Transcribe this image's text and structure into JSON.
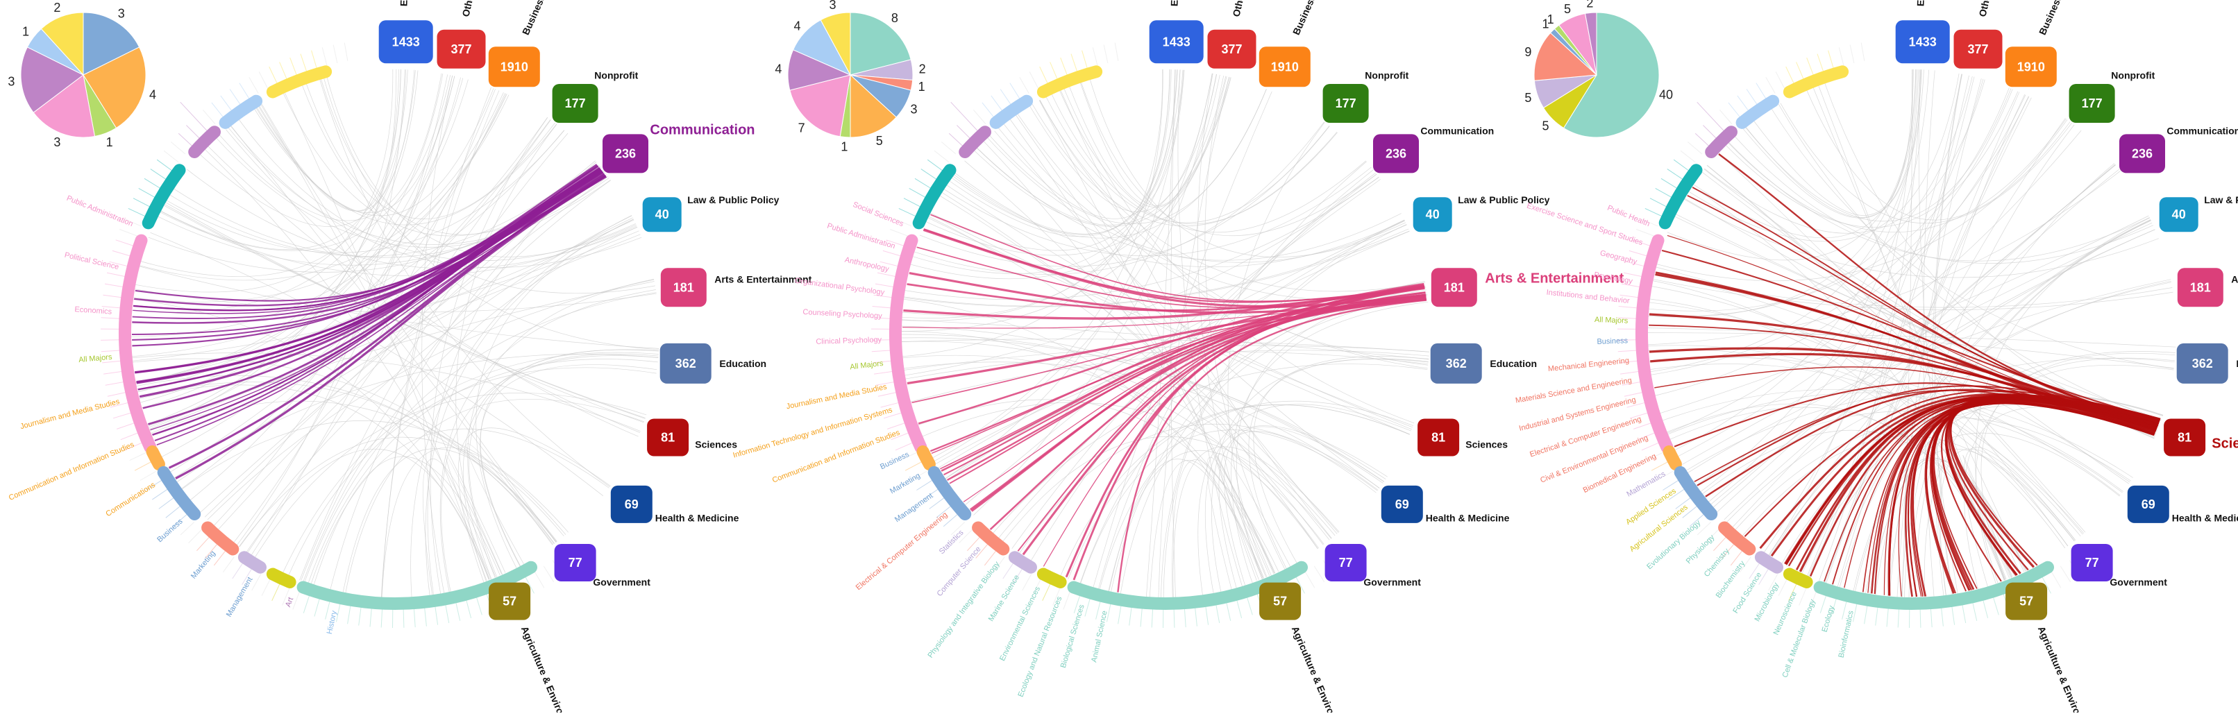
{
  "chart_data": [
    {
      "type": "chord",
      "highlight_field": "Communication",
      "highlight_color": "#8e1f94",
      "fields": [
        {
          "name": "Engineering",
          "count": 1433,
          "color": "#2f63df"
        },
        {
          "name": "Other",
          "count": 377,
          "color": "#dd3131"
        },
        {
          "name": "Business",
          "count": 1910,
          "color": "#fb8317"
        },
        {
          "name": "Nonprofit",
          "count": 177,
          "color": "#2f7d12"
        },
        {
          "name": "Communication",
          "count": 236,
          "color": "#8e1f94"
        },
        {
          "name": "Law & Public Policy",
          "count": 40,
          "color": "#1897c8"
        },
        {
          "name": "Arts & Entertainment",
          "count": 181,
          "color": "#db3f7a"
        },
        {
          "name": "Education",
          "count": 362,
          "color": "#5775aa"
        },
        {
          "name": "Sciences",
          "count": 81,
          "color": "#b20d0d"
        },
        {
          "name": "Health & Medicine",
          "count": 69,
          "color": "#11489b"
        },
        {
          "name": "Government",
          "count": 77,
          "color": "#5f2ee0"
        },
        {
          "name": "Agriculture & Environment",
          "count": 57,
          "color": "#937e12"
        }
      ],
      "pie": {
        "values": [
          3,
          4,
          1,
          3,
          3,
          1,
          2
        ],
        "colors": [
          "#7fa9d7",
          "#fdb14d",
          "#b4dc6a",
          "#f69ad0",
          "#be84c6",
          "#a8cdf4",
          "#fbe150"
        ]
      },
      "major_labels": [
        {
          "text": "Public Administration",
          "color": "#f493c9"
        },
        {
          "text": "Political Science",
          "color": "#f493c9"
        },
        {
          "text": "Economics",
          "color": "#f493c9"
        },
        {
          "text": "All Majors",
          "color": "#a6c72f"
        },
        {
          "text": "Journalism and Media Studies",
          "color": "#f4a01b"
        },
        {
          "text": "Communication and Information Studies",
          "color": "#f4a01b"
        },
        {
          "text": "Communications",
          "color": "#f4a01b"
        },
        {
          "text": "Business",
          "color": "#6d9ed0"
        },
        {
          "text": "Marketing",
          "color": "#6d9ed0"
        },
        {
          "text": "Management",
          "color": "#6d9ed0"
        },
        {
          "text": "Art",
          "color": "#b07ab6"
        },
        {
          "text": "History",
          "color": "#86b9ea"
        }
      ]
    },
    {
      "type": "chord",
      "highlight_field": "Arts & Entertainment",
      "highlight_color": "#db3f7a",
      "fields": [
        {
          "name": "Engineering",
          "count": 1433,
          "color": "#2f63df"
        },
        {
          "name": "Other",
          "count": 377,
          "color": "#dd3131"
        },
        {
          "name": "Business",
          "count": 1910,
          "color": "#fb8317"
        },
        {
          "name": "Nonprofit",
          "count": 177,
          "color": "#2f7d12"
        },
        {
          "name": "Communication",
          "count": 236,
          "color": "#8e1f94"
        },
        {
          "name": "Law & Public Policy",
          "count": 40,
          "color": "#1897c8"
        },
        {
          "name": "Arts & Entertainment",
          "count": 181,
          "color": "#db3f7a"
        },
        {
          "name": "Education",
          "count": 362,
          "color": "#5775aa"
        },
        {
          "name": "Sciences",
          "count": 81,
          "color": "#b20d0d"
        },
        {
          "name": "Health & Medicine",
          "count": 69,
          "color": "#11489b"
        },
        {
          "name": "Government",
          "count": 77,
          "color": "#5f2ee0"
        },
        {
          "name": "Agriculture & Environment",
          "count": 57,
          "color": "#937e12"
        }
      ],
      "pie": {
        "values": [
          8,
          2,
          1,
          3,
          5,
          1,
          7,
          4,
          4,
          3
        ],
        "colors": [
          "#8fd6c6",
          "#c7b6de",
          "#f98d79",
          "#7fa9d7",
          "#fdb14d",
          "#b4dc6a",
          "#f69ad0",
          "#be84c6",
          "#a8cdf4",
          "#fbe150"
        ]
      },
      "major_labels": [
        {
          "text": "Social Sciences",
          "color": "#f493c9"
        },
        {
          "text": "Public Administration",
          "color": "#f493c9"
        },
        {
          "text": "Anthropology",
          "color": "#f493c9"
        },
        {
          "text": "Organizational Psychology",
          "color": "#f493c9"
        },
        {
          "text": "Counseling Psychology",
          "color": "#f493c9"
        },
        {
          "text": "Clinical Psychology",
          "color": "#f493c9"
        },
        {
          "text": "All Majors",
          "color": "#a6c72f"
        },
        {
          "text": "Journalism and Media Studies",
          "color": "#f4a01b"
        },
        {
          "text": "Information Technology and Information Systems",
          "color": "#f4a01b"
        },
        {
          "text": "Communication and Information Studies",
          "color": "#f4a01b"
        },
        {
          "text": "Business",
          "color": "#6d9ed0"
        },
        {
          "text": "Marketing",
          "color": "#6d9ed0"
        },
        {
          "text": "Management",
          "color": "#6d9ed0"
        },
        {
          "text": "Electrical & Computer Engineering",
          "color": "#f07563"
        },
        {
          "text": "Statistics",
          "color": "#b3a2d4"
        },
        {
          "text": "Computer Science",
          "color": "#b3a2d4"
        },
        {
          "text": "Physiology and Integrative Biology",
          "color": "#7fcfbf"
        },
        {
          "text": "Marine Science",
          "color": "#7fcfbf"
        },
        {
          "text": "Environmental Sciences",
          "color": "#7fcfbf"
        },
        {
          "text": "Ecology and Natural Resources",
          "color": "#7fcfbf"
        },
        {
          "text": "Biological Sciences",
          "color": "#7fcfbf"
        },
        {
          "text": "Animal Science",
          "color": "#7fcfbf"
        }
      ]
    },
    {
      "type": "chord",
      "highlight_field": "Sciences",
      "highlight_color": "#b20d0d",
      "fields": [
        {
          "name": "Engineering",
          "count": 1433,
          "color": "#2f63df"
        },
        {
          "name": "Other",
          "count": 377,
          "color": "#dd3131"
        },
        {
          "name": "Business",
          "count": 1910,
          "color": "#fb8317"
        },
        {
          "name": "Nonprofit",
          "count": 177,
          "color": "#2f7d12"
        },
        {
          "name": "Communication",
          "count": 236,
          "color": "#8e1f94"
        },
        {
          "name": "Law & Public Policy",
          "count": 40,
          "color": "#1897c8"
        },
        {
          "name": "Arts & Entertainment",
          "count": 181,
          "color": "#db3f7a"
        },
        {
          "name": "Education",
          "count": 362,
          "color": "#5775aa"
        },
        {
          "name": "Sciences",
          "count": 81,
          "color": "#b20d0d"
        },
        {
          "name": "Health & Medicine",
          "count": 69,
          "color": "#11489b"
        },
        {
          "name": "Government",
          "count": 77,
          "color": "#5f2ee0"
        },
        {
          "name": "Agriculture & Environment",
          "count": 57,
          "color": "#937e12"
        }
      ],
      "pie": {
        "values": [
          40,
          5,
          5,
          9,
          1,
          1,
          5,
          2
        ],
        "colors": [
          "#8fd6c6",
          "#d6d21c",
          "#c7b6de",
          "#f98d79",
          "#7fa9d7",
          "#b4dc6a",
          "#f69ad0",
          "#be84c6"
        ]
      },
      "major_labels": [
        {
          "text": "Public Health",
          "color": "#f493c9"
        },
        {
          "text": "Exercise Science and Sport Studies",
          "color": "#f493c9"
        },
        {
          "text": "Geography",
          "color": "#f493c9"
        },
        {
          "text": "Psychology",
          "color": "#f493c9"
        },
        {
          "text": "Institutions and Behavior",
          "color": "#f493c9"
        },
        {
          "text": "All Majors",
          "color": "#a6c72f"
        },
        {
          "text": "Business",
          "color": "#6d9ed0"
        },
        {
          "text": "Mechanical Engineering",
          "color": "#f07563"
        },
        {
          "text": "Materials Science and Engineering",
          "color": "#f07563"
        },
        {
          "text": "Industrial and Systems Engineering",
          "color": "#f07563"
        },
        {
          "text": "Electrical & Computer Engineering",
          "color": "#f07563"
        },
        {
          "text": "Civil & Environmental Engineering",
          "color": "#f07563"
        },
        {
          "text": "Biomedical Engineering",
          "color": "#f07563"
        },
        {
          "text": "Mathematics",
          "color": "#b3a2d4"
        },
        {
          "text": "Applied Sciences",
          "color": "#d6c31c"
        },
        {
          "text": "Agricultural Sciences",
          "color": "#d6c31c"
        },
        {
          "text": "Evolutionary Biology",
          "color": "#7fcfbf"
        },
        {
          "text": "Physiology",
          "color": "#7fcfbf"
        },
        {
          "text": "Chemistry",
          "color": "#7fcfbf"
        },
        {
          "text": "Biochemistry",
          "color": "#7fcfbf"
        },
        {
          "text": "Food Science",
          "color": "#7fcfbf"
        },
        {
          "text": "Microbiology",
          "color": "#7fcfbf"
        },
        {
          "text": "Neuroscience",
          "color": "#7fcfbf"
        },
        {
          "text": "Cell & Molecular Biology",
          "color": "#7fcfbf"
        },
        {
          "text": "Ecology",
          "color": "#7fcfbf"
        },
        {
          "text": "Bioinformatics",
          "color": "#7fcfbf"
        }
      ]
    }
  ]
}
